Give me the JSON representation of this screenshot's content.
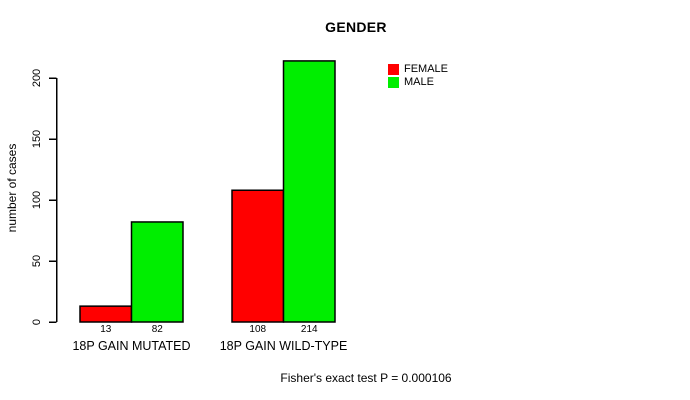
{
  "chart_data": {
    "type": "bar",
    "title": "GENDER",
    "xlabel": "",
    "ylabel": "number of cases",
    "categories": [
      "18P GAIN MUTATED",
      "18P GAIN WILD-TYPE"
    ],
    "series": [
      {
        "name": "FEMALE",
        "color": "#ff0000",
        "values": [
          13,
          108
        ]
      },
      {
        "name": "MALE",
        "color": "#00ee00",
        "values": [
          82,
          214
        ]
      }
    ],
    "bar_value_labels": [
      [
        "13",
        "82"
      ],
      [
        "108",
        "214"
      ]
    ],
    "yticks": [
      0,
      50,
      100,
      150,
      200
    ],
    "ylim": [
      0,
      223
    ],
    "grid": false,
    "legend_position": "top-right-inside",
    "annotation": "Fisher's exact test P = 0.000106",
    "axis_color": "#000000",
    "background_color": "#ffffff"
  }
}
